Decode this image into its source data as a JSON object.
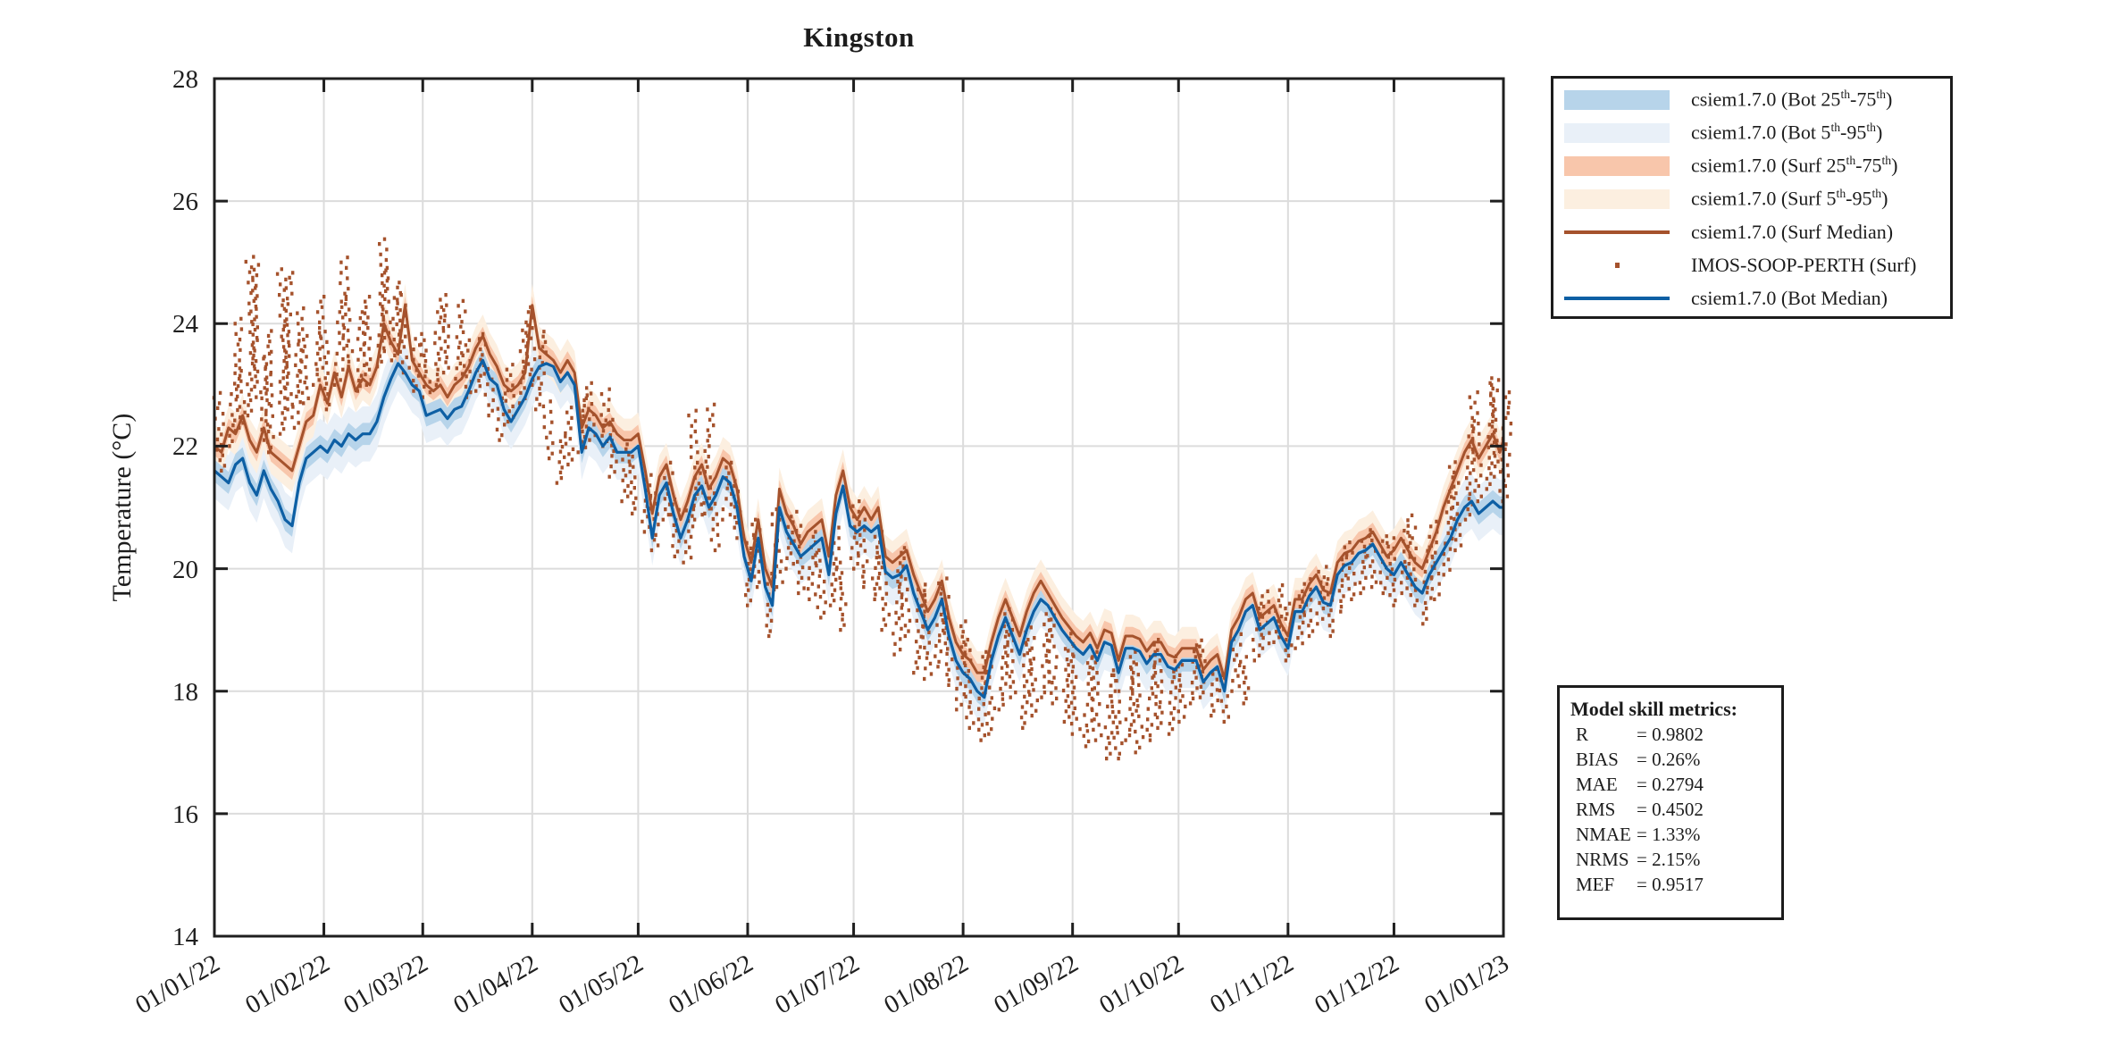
{
  "title": "Kingston",
  "axes": {
    "ylabel": "Temperature (°C)",
    "yticks": [
      14,
      16,
      18,
      20,
      22,
      24,
      26,
      28
    ],
    "ylim": [
      14,
      28
    ],
    "xtick_labels": [
      "01/01/22",
      "01/02/22",
      "01/03/22",
      "01/04/22",
      "01/05/22",
      "01/06/22",
      "01/07/22",
      "01/08/22",
      "01/09/22",
      "01/10/22",
      "01/11/22",
      "01/12/22",
      "01/01/23"
    ],
    "xtick_days": [
      0,
      31,
      59,
      90,
      120,
      151,
      181,
      212,
      243,
      273,
      304,
      334,
      365
    ],
    "xlim_days": [
      0,
      365
    ],
    "grid": "on",
    "grid_color": "#DCDCDC",
    "axis_color": "#1f1f1f"
  },
  "legend": {
    "position": "outside-top-right",
    "items": [
      {
        "label": "csiem1.7.0 (Bot 25th-75th)",
        "swatch": "band",
        "color": "#B7D4EA"
      },
      {
        "label": "csiem1.7.0 (Bot 5th-95th)",
        "swatch": "band",
        "color": "#E9F0F8"
      },
      {
        "label": "csiem1.7.0 (Surf 25th-75th)",
        "swatch": "band",
        "color": "#F8C6AB"
      },
      {
        "label": "csiem1.7.0 (Surf 5th-95th)",
        "swatch": "band",
        "color": "#FCEFE0"
      },
      {
        "label": "csiem1.7.0 (Surf Median)",
        "swatch": "line",
        "color": "#A5522C"
      },
      {
        "label": "IMOS-SOOP-PERTH (Surf)",
        "swatch": "dot",
        "color": "#A5522C"
      },
      {
        "label": "csiem1.7.0 (Bot Median)",
        "swatch": "line",
        "color": "#0D5FA4"
      }
    ]
  },
  "metrics": {
    "title": "Model skill metrics:",
    "rows": [
      {
        "name": "R",
        "value": "0.9802"
      },
      {
        "name": "BIAS",
        "value": "0.26%"
      },
      {
        "name": "MAE",
        "value": "0.2794"
      },
      {
        "name": "RMS",
        "value": "0.4502"
      },
      {
        "name": "NMAE",
        "value": "1.33%"
      },
      {
        "name": "NRMS",
        "value": "2.15%"
      },
      {
        "name": "MEF",
        "value": "0.9517"
      }
    ]
  },
  "chart_data": {
    "type": "line",
    "title": "Kingston",
    "xlabel": "",
    "ylabel": "Temperature (°C)",
    "ylim": [
      14,
      28
    ],
    "x_unit": "days since 01/01/22",
    "x": [
      0,
      2,
      4,
      6,
      8,
      10,
      12,
      14,
      16,
      18,
      20,
      22,
      24,
      26,
      28,
      30,
      32,
      34,
      36,
      38,
      40,
      42,
      44,
      46,
      48,
      50,
      52,
      54,
      56,
      58,
      60,
      62,
      64,
      66,
      68,
      70,
      72,
      74,
      76,
      78,
      80,
      82,
      84,
      86,
      88,
      90,
      92,
      94,
      96,
      98,
      100,
      102,
      104,
      106,
      108,
      110,
      112,
      114,
      116,
      118,
      120,
      122,
      124,
      126,
      128,
      130,
      132,
      134,
      136,
      138,
      140,
      142,
      144,
      146,
      148,
      150,
      152,
      154,
      156,
      158,
      160,
      162,
      164,
      166,
      168,
      170,
      172,
      174,
      176,
      178,
      180,
      182,
      184,
      186,
      188,
      190,
      192,
      194,
      196,
      198,
      200,
      202,
      204,
      206,
      208,
      210,
      212,
      214,
      216,
      218,
      220,
      222,
      224,
      226,
      228,
      230,
      232,
      234,
      236,
      238,
      240,
      242,
      244,
      246,
      248,
      250,
      252,
      254,
      256,
      258,
      260,
      262,
      264,
      266,
      268,
      270,
      272,
      274,
      276,
      278,
      280,
      282,
      284,
      286,
      288,
      290,
      292,
      294,
      296,
      298,
      300,
      302,
      304,
      306,
      308,
      310,
      312,
      314,
      316,
      318,
      320,
      322,
      324,
      326,
      328,
      330,
      332,
      334,
      336,
      338,
      340,
      342,
      344,
      346,
      348,
      350,
      352,
      354,
      356,
      358,
      360,
      362,
      364,
      365
    ],
    "series": [
      {
        "name": "csiem1.7.0 (Bot Median)",
        "color": "#0D5FA4",
        "band_halfwidths": {
          "p25_75": 0.18,
          "p5_95": 0.45
        },
        "band_colors": {
          "p25_75": "#B7D4EA",
          "p5_95": "#E9F0F8"
        },
        "y": [
          21.6,
          21.5,
          21.4,
          21.7,
          21.8,
          21.4,
          21.2,
          21.6,
          21.3,
          21.1,
          20.8,
          20.7,
          21.4,
          21.8,
          21.9,
          22.0,
          21.9,
          22.1,
          22.0,
          22.2,
          22.1,
          22.2,
          22.2,
          22.4,
          22.8,
          23.1,
          23.35,
          23.2,
          23.0,
          22.9,
          22.5,
          22.55,
          22.6,
          22.45,
          22.6,
          22.65,
          22.9,
          23.2,
          23.4,
          23.1,
          23.0,
          22.6,
          22.4,
          22.6,
          22.8,
          23.1,
          23.3,
          23.35,
          23.3,
          23.05,
          23.2,
          23.0,
          21.9,
          22.3,
          22.2,
          22.0,
          22.15,
          21.9,
          21.9,
          21.9,
          22.0,
          21.3,
          20.5,
          21.2,
          21.4,
          20.9,
          20.5,
          20.8,
          21.2,
          21.35,
          21.0,
          21.2,
          21.5,
          21.4,
          21.0,
          20.2,
          19.8,
          20.5,
          19.7,
          19.4,
          21.0,
          20.6,
          20.4,
          20.2,
          20.3,
          20.4,
          20.5,
          19.9,
          20.9,
          21.35,
          20.7,
          20.6,
          20.7,
          20.6,
          20.7,
          19.95,
          19.85,
          19.9,
          20.05,
          19.6,
          19.3,
          19.0,
          19.2,
          19.5,
          18.9,
          18.5,
          18.3,
          18.2,
          18.0,
          17.9,
          18.5,
          18.9,
          19.2,
          18.9,
          18.6,
          19.0,
          19.3,
          19.5,
          19.4,
          19.2,
          19.0,
          18.85,
          18.7,
          18.6,
          18.75,
          18.5,
          18.8,
          18.75,
          18.3,
          18.7,
          18.7,
          18.65,
          18.45,
          18.6,
          18.6,
          18.4,
          18.35,
          18.5,
          18.5,
          18.5,
          18.15,
          18.3,
          18.4,
          18.0,
          18.8,
          19.0,
          19.3,
          19.4,
          19.0,
          19.1,
          19.2,
          18.9,
          18.7,
          19.3,
          19.3,
          19.55,
          19.7,
          19.45,
          19.4,
          19.9,
          20.05,
          20.1,
          20.25,
          20.3,
          20.4,
          20.2,
          20.0,
          19.9,
          20.1,
          19.9,
          19.7,
          19.6,
          19.9,
          20.1,
          20.3,
          20.5,
          20.8,
          21.0,
          21.1,
          20.9,
          21.0,
          21.1,
          21.0,
          21.0
        ]
      },
      {
        "name": "csiem1.7.0 (Surf Median)",
        "color": "#A5522C",
        "band_halfwidths": {
          "p25_75": 0.15,
          "p5_95": 0.35
        },
        "band_colors": {
          "p25_75": "#F8C6AB",
          "p5_95": "#FCEFE0"
        },
        "y": [
          22.0,
          21.9,
          22.3,
          22.2,
          22.5,
          22.1,
          21.9,
          22.3,
          21.9,
          21.8,
          21.7,
          21.6,
          22.0,
          22.4,
          22.5,
          23.0,
          22.7,
          23.2,
          22.8,
          23.3,
          22.9,
          23.1,
          23.0,
          23.3,
          24.0,
          23.7,
          23.5,
          24.3,
          23.4,
          23.2,
          23.0,
          22.9,
          23.0,
          22.8,
          23.0,
          23.1,
          23.3,
          23.6,
          23.8,
          23.5,
          23.3,
          23.0,
          22.9,
          23.0,
          23.2,
          24.3,
          23.6,
          23.5,
          23.4,
          23.2,
          23.4,
          23.2,
          22.3,
          22.6,
          22.5,
          22.3,
          22.4,
          22.2,
          22.1,
          22.1,
          22.2,
          21.6,
          20.9,
          21.5,
          21.7,
          21.2,
          20.8,
          21.1,
          21.5,
          21.7,
          21.3,
          21.5,
          21.8,
          21.7,
          21.3,
          20.5,
          20.1,
          20.8,
          20.0,
          19.7,
          21.3,
          20.9,
          20.7,
          20.4,
          20.6,
          20.7,
          20.8,
          20.2,
          21.2,
          21.6,
          21.0,
          20.8,
          21.0,
          20.8,
          21.0,
          20.2,
          20.1,
          20.2,
          20.3,
          19.9,
          19.6,
          19.3,
          19.5,
          19.8,
          19.2,
          18.8,
          18.6,
          18.5,
          18.3,
          18.3,
          18.8,
          19.2,
          19.5,
          19.2,
          18.9,
          19.3,
          19.6,
          19.8,
          19.6,
          19.4,
          19.2,
          19.05,
          18.9,
          18.8,
          18.95,
          18.7,
          19.0,
          18.95,
          18.5,
          18.9,
          18.9,
          18.85,
          18.65,
          18.8,
          18.8,
          18.6,
          18.55,
          18.7,
          18.7,
          18.7,
          18.35,
          18.5,
          18.6,
          18.2,
          19.0,
          19.2,
          19.5,
          19.6,
          19.2,
          19.3,
          19.4,
          19.1,
          18.9,
          19.5,
          19.5,
          19.75,
          19.9,
          19.65,
          19.6,
          20.1,
          20.25,
          20.3,
          20.45,
          20.5,
          20.6,
          20.4,
          20.2,
          20.3,
          20.5,
          20.3,
          20.1,
          20.0,
          20.3,
          20.6,
          21.0,
          21.3,
          21.6,
          21.9,
          22.1,
          21.8,
          22.0,
          22.2,
          21.9,
          22.1
        ]
      }
    ],
    "scatter": {
      "name": "IMOS-SOOP-PERTH (Surf)",
      "color": "#A5522C",
      "marker": "dot",
      "strips_day_tmin_tmax": [
        [
          1,
          21.6,
          22.9
        ],
        [
          4,
          22.0,
          23.3
        ],
        [
          7,
          22.3,
          24.1
        ],
        [
          9,
          22.5,
          25.0
        ],
        [
          11,
          22.8,
          25.1
        ],
        [
          13,
          22.1,
          23.9
        ],
        [
          15,
          21.9,
          23.5
        ],
        [
          18,
          22.2,
          24.8
        ],
        [
          20,
          22.6,
          24.9
        ],
        [
          22,
          22.3,
          24.2
        ],
        [
          25,
          22.7,
          23.8
        ],
        [
          28,
          23.0,
          24.5
        ],
        [
          31,
          22.6,
          23.9
        ],
        [
          34,
          23.0,
          24.4
        ],
        [
          37,
          23.3,
          25.0
        ],
        [
          40,
          22.9,
          24.1
        ],
        [
          43,
          23.0,
          24.4
        ],
        [
          46,
          23.3,
          24.9
        ],
        [
          48,
          23.6,
          25.3
        ],
        [
          50,
          23.4,
          24.7
        ],
        [
          53,
          23.2,
          24.5
        ],
        [
          56,
          22.9,
          23.8
        ],
        [
          59,
          22.8,
          23.7
        ],
        [
          62,
          23.0,
          24.3
        ],
        [
          65,
          23.2,
          24.5
        ],
        [
          68,
          23.1,
          24.4
        ],
        [
          71,
          22.8,
          23.8
        ],
        [
          74,
          22.9,
          23.9
        ],
        [
          77,
          22.5,
          23.3
        ],
        [
          80,
          22.1,
          22.9
        ],
        [
          83,
          22.4,
          23.4
        ],
        [
          86,
          22.7,
          24.0
        ],
        [
          89,
          23.0,
          24.2
        ],
        [
          91,
          22.6,
          23.8
        ],
        [
          94,
          21.8,
          22.8
        ],
        [
          97,
          21.4,
          22.2
        ],
        [
          100,
          21.7,
          22.6
        ],
        [
          103,
          21.9,
          22.9
        ],
        [
          106,
          22.1,
          23.1
        ],
        [
          109,
          22.0,
          23.0
        ],
        [
          112,
          21.5,
          22.4
        ],
        [
          115,
          21.1,
          22.0
        ],
        [
          118,
          20.9,
          21.8
        ],
        [
          121,
          20.6,
          21.5
        ],
        [
          124,
          20.3,
          21.2
        ],
        [
          127,
          20.8,
          21.7
        ],
        [
          130,
          20.2,
          21.1
        ],
        [
          133,
          20.1,
          21.0
        ],
        [
          136,
          20.8,
          22.5
        ],
        [
          138,
          20.9,
          22.6
        ],
        [
          141,
          20.3,
          21.3
        ],
        [
          144,
          20.8,
          21.8
        ],
        [
          147,
          20.5,
          21.5
        ],
        [
          150,
          19.4,
          20.5
        ],
        [
          153,
          19.7,
          20.8
        ],
        [
          156,
          18.9,
          20.0
        ],
        [
          159,
          19.7,
          20.9
        ],
        [
          162,
          20.0,
          21.0
        ],
        [
          165,
          19.6,
          20.7
        ],
        [
          168,
          19.5,
          20.6
        ],
        [
          171,
          19.2,
          20.3
        ],
        [
          174,
          19.4,
          20.6
        ],
        [
          177,
          19.0,
          20.1
        ],
        [
          180,
          20.0,
          21.1
        ],
        [
          183,
          19.7,
          20.8
        ],
        [
          186,
          19.5,
          20.6
        ],
        [
          189,
          19.0,
          20.2
        ],
        [
          192,
          18.6,
          20.0
        ],
        [
          195,
          18.9,
          20.3
        ],
        [
          198,
          18.3,
          19.7
        ],
        [
          201,
          18.2,
          19.6
        ],
        [
          204,
          18.4,
          19.8
        ],
        [
          207,
          18.1,
          19.5
        ],
        [
          210,
          17.7,
          19.1
        ],
        [
          213,
          17.4,
          18.8
        ],
        [
          216,
          17.2,
          18.6
        ],
        [
          219,
          17.3,
          18.6
        ],
        [
          222,
          17.7,
          19.1
        ],
        [
          225,
          17.9,
          19.3
        ],
        [
          228,
          17.4,
          18.8
        ],
        [
          231,
          17.6,
          19.0
        ],
        [
          234,
          17.9,
          19.4
        ],
        [
          237,
          17.8,
          19.2
        ],
        [
          240,
          17.5,
          18.9
        ],
        [
          243,
          17.3,
          18.8
        ],
        [
          246,
          17.1,
          18.6
        ],
        [
          249,
          17.2,
          18.7
        ],
        [
          252,
          16.9,
          18.4
        ],
        [
          255,
          16.9,
          18.3
        ],
        [
          258,
          17.2,
          18.7
        ],
        [
          261,
          17.0,
          18.5
        ],
        [
          264,
          17.2,
          18.6
        ],
        [
          267,
          17.4,
          18.8
        ],
        [
          270,
          17.3,
          18.6
        ],
        [
          273,
          17.5,
          18.5
        ],
        [
          276,
          17.8,
          18.7
        ],
        [
          279,
          17.9,
          18.8
        ],
        [
          282,
          17.6,
          18.4
        ],
        [
          285,
          17.5,
          18.3
        ],
        [
          288,
          18.0,
          18.9
        ],
        [
          291,
          17.8,
          18.6
        ],
        [
          294,
          18.5,
          19.4
        ],
        [
          297,
          18.7,
          19.6
        ],
        [
          300,
          18.8,
          19.7
        ],
        [
          303,
          18.5,
          19.4
        ],
        [
          306,
          18.7,
          19.7
        ],
        [
          309,
          18.9,
          19.9
        ],
        [
          312,
          19.1,
          20.1
        ],
        [
          315,
          18.9,
          19.9
        ],
        [
          318,
          19.3,
          20.3
        ],
        [
          321,
          19.5,
          20.5
        ],
        [
          324,
          19.6,
          20.6
        ],
        [
          327,
          19.7,
          20.7
        ],
        [
          330,
          19.6,
          20.6
        ],
        [
          333,
          19.4,
          20.5
        ],
        [
          336,
          19.6,
          20.8
        ],
        [
          339,
          19.4,
          20.6
        ],
        [
          342,
          19.1,
          20.3
        ],
        [
          345,
          19.5,
          20.8
        ],
        [
          348,
          19.9,
          21.3
        ],
        [
          351,
          20.3,
          21.8
        ],
        [
          354,
          20.8,
          22.4
        ],
        [
          357,
          21.1,
          22.8
        ],
        [
          360,
          21.3,
          23.0
        ],
        [
          362,
          21.5,
          23.1
        ],
        [
          364,
          21.1,
          22.8
        ]
      ]
    }
  }
}
